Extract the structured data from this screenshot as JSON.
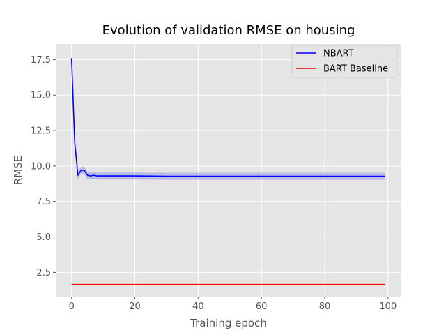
{
  "chart_data": {
    "type": "line",
    "title": "Evolution of validation RMSE on housing",
    "xlabel": "Training epoch",
    "ylabel": "RMSE",
    "xlim": [
      -5,
      104
    ],
    "ylim": [
      0.8,
      18.6
    ],
    "xticks": [
      0,
      20,
      40,
      60,
      80,
      100
    ],
    "xtick_labels": [
      "0",
      "20",
      "40",
      "60",
      "80",
      "100"
    ],
    "yticks": [
      2.5,
      5.0,
      7.5,
      10.0,
      12.5,
      15.0,
      17.5
    ],
    "ytick_labels": [
      "2.5",
      "5.0",
      "7.5",
      "10.0",
      "12.5",
      "15.0",
      "17.5"
    ],
    "grid": true,
    "style": "ggplot",
    "legend_position": "top-right",
    "series": [
      {
        "name": "NBART",
        "color": "#0000ff",
        "band_color": "#9999ee",
        "x": [
          0,
          1,
          2,
          3,
          4,
          5,
          6,
          7,
          8,
          10,
          15,
          20,
          30,
          40,
          50,
          60,
          70,
          80,
          90,
          99
        ],
        "values": [
          17.6,
          11.7,
          9.35,
          9.7,
          9.7,
          9.35,
          9.3,
          9.35,
          9.3,
          9.3,
          9.3,
          9.3,
          9.28,
          9.28,
          9.28,
          9.28,
          9.28,
          9.28,
          9.28,
          9.28
        ],
        "band_lower": [
          17.2,
          11.3,
          9.1,
          9.45,
          9.45,
          9.1,
          9.05,
          9.1,
          9.05,
          9.05,
          9.05,
          9.05,
          9.03,
          9.03,
          9.03,
          9.03,
          9.03,
          9.03,
          9.03,
          9.03
        ],
        "band_upper": [
          18.0,
          12.1,
          9.6,
          9.95,
          9.95,
          9.6,
          9.55,
          9.6,
          9.55,
          9.55,
          9.55,
          9.55,
          9.53,
          9.53,
          9.53,
          9.53,
          9.53,
          9.53,
          9.53,
          9.53
        ]
      },
      {
        "name": "BART Baseline",
        "color": "#ff0000",
        "x": [
          0,
          99
        ],
        "values": [
          1.65,
          1.65
        ]
      }
    ]
  }
}
